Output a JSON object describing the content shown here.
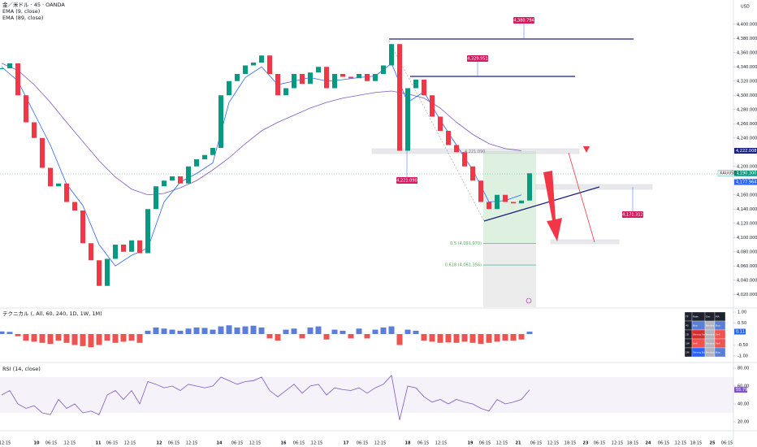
{
  "chart_data": {
    "type": "candlestick",
    "title": "金／米ドル · 45 · OANDA",
    "ema_fast_label": "EMA (9, close)",
    "ema_slow_label": "EMA (89, close)",
    "currency": "USD",
    "close": [
      4338,
      4345,
      4300,
      4262,
      4240,
      4198,
      4172,
      4176,
      4150,
      4138,
      4092,
      4068,
      4032,
      4070,
      4090,
      4080,
      4096,
      4078,
      4140,
      4172,
      4180,
      4186,
      4176,
      4200,
      4210,
      4216,
      4226,
      4300,
      4320,
      4330,
      4342,
      4346,
      4356,
      4330,
      4300,
      4310,
      4330,
      4316,
      4332,
      4340,
      4310,
      4330,
      4326,
      4324,
      4330,
      4320,
      4330,
      4342,
      4372,
      4222,
      4310,
      4322,
      4300,
      4270,
      4250,
      4230,
      4220,
      4200,
      4180,
      4150,
      4140,
      4160,
      4150,
      4148,
      4152,
      4190.3
    ],
    "ema_fast": [
      4340,
      4320,
      4275,
      4230,
      4175,
      4145,
      4090,
      4060,
      4075,
      4085,
      4150,
      4178,
      4190,
      4205,
      4290,
      4325,
      4340,
      4315,
      4320,
      4325,
      4320,
      4322,
      4325,
      4327,
      4345,
      4290,
      4305,
      4265,
      4230,
      4195,
      4150,
      4152,
      4160
    ],
    "ema_slow": [
      4345,
      4335,
      4315,
      4290,
      4262,
      4235,
      4208,
      4185,
      4168,
      4160,
      4162,
      4170,
      4180,
      4195,
      4212,
      4232,
      4250,
      4262,
      4272,
      4282,
      4290,
      4296,
      4300,
      4304,
      4306,
      4302,
      4296,
      4282,
      4262,
      4245,
      4232,
      4225,
      4222
    ],
    "ema_fast_color": "#2962ff",
    "ema_slow_color": "#7e57c2",
    "up_color": "#089981",
    "down_color": "#f23645",
    "ylim": [
      4002,
      4434
    ],
    "yticks": [
      {
        "value": 4020,
        "label": "4,020.000"
      },
      {
        "value": 4040,
        "label": "4,040.000"
      },
      {
        "value": 4060,
        "label": "4,060.000"
      },
      {
        "value": 4080,
        "label": "4,080.000"
      },
      {
        "value": 4100,
        "label": "4,100.000"
      },
      {
        "value": 4120,
        "label": "4,120.000"
      },
      {
        "value": 4140,
        "label": "4,140.000"
      },
      {
        "value": 4160,
        "label": "4,160.000"
      },
      {
        "value": 4180,
        "label": "4,180.000"
      },
      {
        "value": 4200,
        "label": "4,200.000"
      },
      {
        "value": 4240,
        "label": "4,240.000"
      },
      {
        "value": 4260,
        "label": "4,260.000"
      },
      {
        "value": 4280,
        "label": "4,280.000"
      },
      {
        "value": 4300,
        "label": "4,300.000"
      },
      {
        "value": 4320,
        "label": "4,320.000"
      },
      {
        "value": 4340,
        "label": "4,340.000"
      },
      {
        "value": 4360,
        "label": "4,360.000"
      },
      {
        "value": 4380,
        "label": "4,380.000"
      },
      {
        "value": 4400,
        "label": "4,400.000"
      }
    ],
    "price_markers": [
      {
        "value": 4222.008,
        "label": "4,222.008"
      },
      {
        "value": 4190.3,
        "label": "4,190.300"
      },
      {
        "value": 4177.964,
        "label": "4,177.964"
      }
    ],
    "symbol_tag": "XAUUSD",
    "annotations": [
      {
        "value": 4380.794,
        "label": "4,380.794"
      },
      {
        "value": 4329.951,
        "label": "4,329.951"
      },
      {
        "value": 4221.09,
        "label": "4,221.090"
      },
      {
        "value": 4171.312,
        "label": "4,171.312"
      },
      {
        "value": 4221.09,
        "label": "4,221.090"
      }
    ],
    "fib_levels": [
      {
        "value": 4091.97,
        "label": "0.5 (4,091.970)"
      },
      {
        "value": 4061.356,
        "label": "0.618 (4,061.356)"
      }
    ],
    "x_labels": [
      "12:15",
      "10",
      "06:15",
      "12:15",
      "11",
      "06:15",
      "12:15",
      "12",
      "06:15",
      "12:15",
      "14",
      "06:15",
      "12:15",
      "16",
      "06:15",
      "12:15",
      "17",
      "06:15",
      "12:15",
      "18",
      "06:15",
      "12:15",
      "19",
      "06:15",
      "12:15",
      "21",
      "06:15",
      "12:15",
      "18:15",
      "23",
      "06:15",
      "12:15",
      "18:15",
      "24",
      "06:15",
      "12:15",
      "18:15",
      "25",
      "06:15"
    ],
    "technical": {
      "title": "テクニカル (, All, 60, 240, 1D, 1W, 1M)",
      "values": [
        0.12,
        0.1,
        -0.1,
        -0.3,
        -0.35,
        -0.4,
        -0.45,
        -0.3,
        -0.4,
        -0.5,
        -0.55,
        -0.6,
        -0.5,
        -0.3,
        -0.4,
        -0.35,
        -0.3,
        -0.4,
        0.15,
        0.3,
        0.25,
        0.2,
        0.15,
        0.25,
        0.3,
        0.28,
        0.2,
        0.35,
        0.4,
        0.3,
        0.35,
        0.38,
        0.3,
        -0.2,
        -0.3,
        0.2,
        0.25,
        -0.2,
        0.3,
        0.35,
        -0.25,
        0.2,
        0.15,
        -0.2,
        0.25,
        -0.2,
        0.2,
        0.3,
        0.35,
        -0.5,
        0.2,
        0.15,
        -0.3,
        -0.35,
        -0.4,
        -0.38,
        -0.4,
        -0.35,
        -0.4,
        -0.45,
        -0.4,
        -0.35,
        -0.3,
        -0.3,
        -0.25,
        0.11
      ],
      "ylim": [
        -1.26,
        1.15
      ],
      "yticks": [
        {
          "value": 1,
          "label": "1.00"
        },
        {
          "value": 0.5,
          "label": "0.50"
        },
        {
          "value": -0.5,
          "label": "-0.50"
        },
        {
          "value": -1,
          "label": "-1.00"
        }
      ],
      "last_label": "0.11",
      "table": {
        "header": [
          "TF",
          "Rate",
          "Osc",
          "MA"
        ],
        "rows": [
          [
            "45",
            "Buy",
            "Neutral",
            "Buy"
          ],
          [
            "1D",
            "Strong Sell",
            "Neutral",
            "Sell"
          ],
          [
            "1W",
            "Sell",
            "Neutral",
            "Sell"
          ],
          [
            "1M",
            "Strong Buy",
            "Neutral",
            "Buy"
          ]
        ]
      }
    },
    "rsi": {
      "title": "RSI (14, close)",
      "values": [
        50,
        55,
        40,
        35,
        38,
        30,
        28,
        45,
        35,
        40,
        30,
        32,
        28,
        50,
        55,
        45,
        55,
        40,
        65,
        62,
        58,
        60,
        55,
        62,
        60,
        58,
        60,
        70,
        66,
        62,
        65,
        66,
        70,
        55,
        48,
        55,
        62,
        52,
        60,
        62,
        50,
        58,
        56,
        55,
        58,
        52,
        58,
        62,
        72,
        22,
        60,
        58,
        48,
        42,
        45,
        40,
        45,
        42,
        40,
        35,
        32,
        45,
        40,
        42,
        45,
        55.79
      ],
      "value_labels_last": "55.79",
      "color": "#7e57c2",
      "ylim": [
        14.5,
        85.5
      ],
      "yticks": [
        {
          "value": 80,
          "label": "80.00"
        },
        {
          "value": 60,
          "label": "60.00"
        },
        {
          "value": 40,
          "label": "40.00"
        },
        {
          "value": 20,
          "label": "20.00"
        }
      ]
    }
  }
}
